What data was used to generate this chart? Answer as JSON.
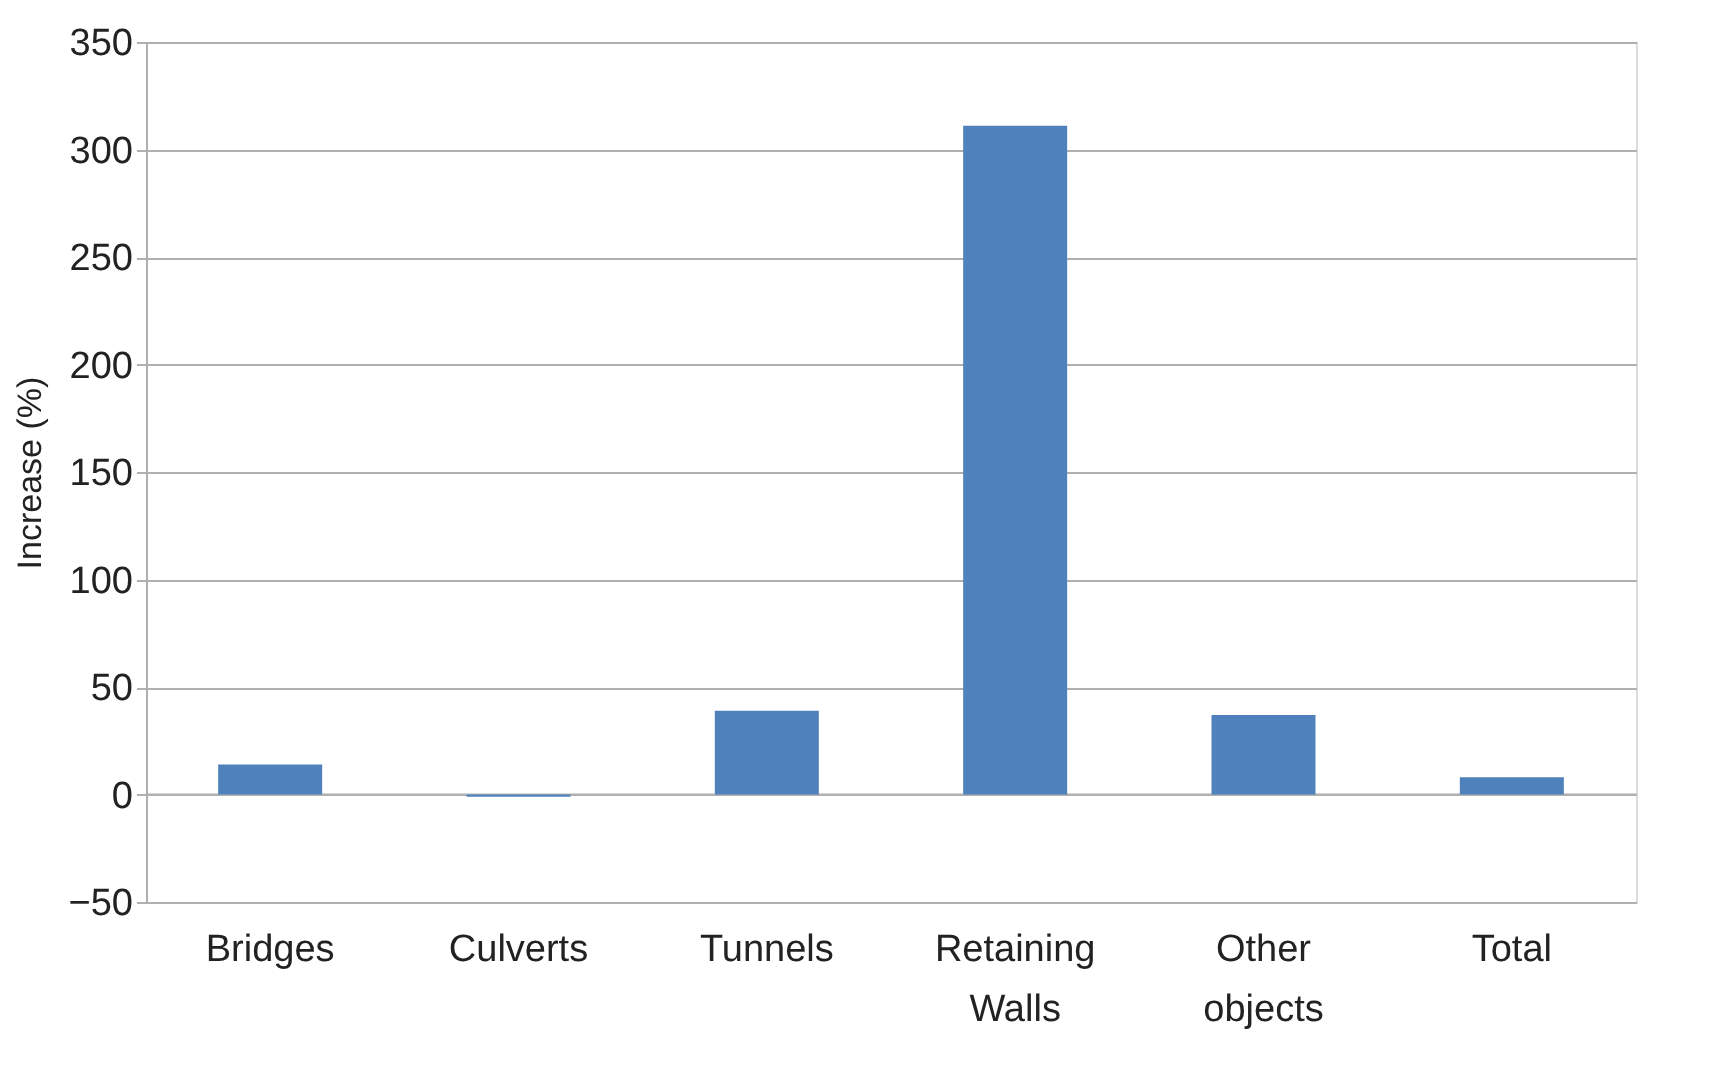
{
  "chart_data": {
    "type": "bar",
    "ylabel": "Increase (%)",
    "categories": [
      "Bridges",
      "Culverts",
      "Tunnels",
      "Retaining Walls",
      "Other objects",
      "Total"
    ],
    "values": [
      14,
      -1,
      39,
      311,
      37,
      8
    ],
    "color": "#4f81bd",
    "ylim": [
      -50,
      350
    ],
    "yticks": [
      -50,
      0,
      50,
      100,
      150,
      200,
      250,
      300,
      350
    ],
    "grid": "y"
  }
}
